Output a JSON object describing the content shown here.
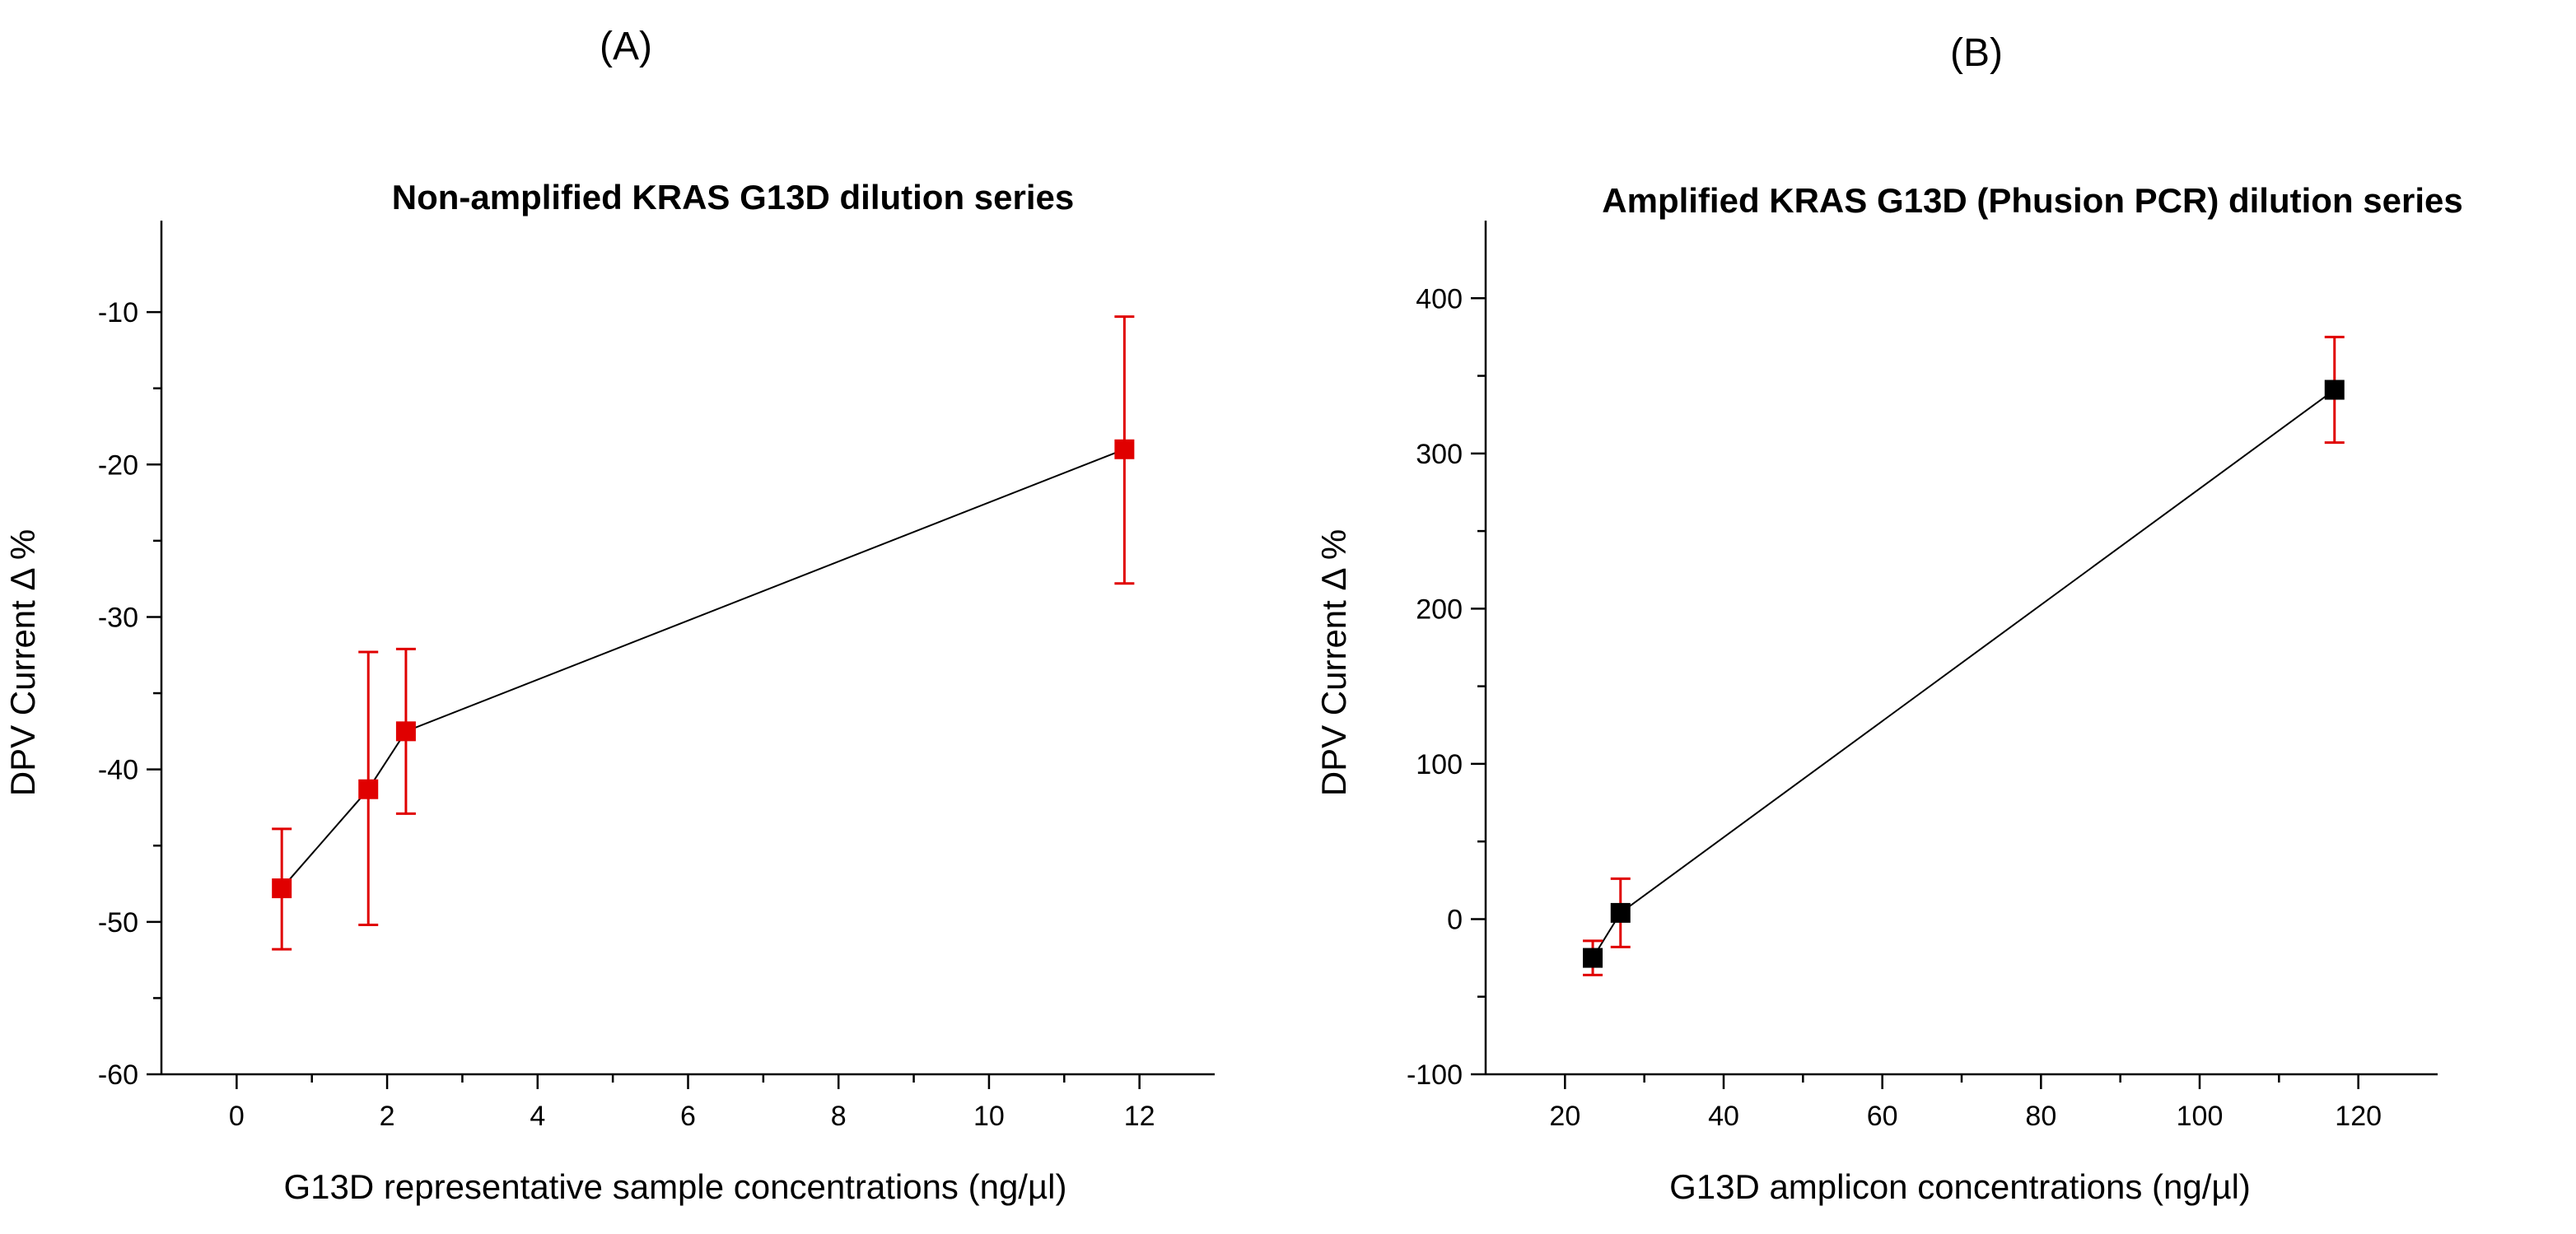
{
  "chart_data": [
    {
      "panel_label": "(A)",
      "type": "line",
      "title": "Non-amplified KRAS G13D dilution series",
      "xlabel": "G13D representative sample concentrations (ng/µl)",
      "ylabel": "DPV Current Δ %",
      "xlim": [
        -1,
        13
      ],
      "ylim": [
        -60,
        -4
      ],
      "xticks": [
        0,
        2,
        4,
        6,
        8,
        10,
        12
      ],
      "yticks": [
        -60,
        -50,
        -40,
        -30,
        -20,
        -10
      ],
      "marker_color": "#e00000",
      "errorbar_color": "#e00000",
      "line_color": "#000000",
      "points": [
        {
          "x": 0.6,
          "y": -47.8,
          "err_low": 4.0,
          "err_high": 3.9
        },
        {
          "x": 1.75,
          "y": -41.3,
          "err_low": 8.9,
          "err_high": 9.0
        },
        {
          "x": 2.25,
          "y": -37.5,
          "err_low": 5.4,
          "err_high": 5.4
        },
        {
          "x": 11.8,
          "y": -19.0,
          "err_low": 8.8,
          "err_high": 8.7
        }
      ]
    },
    {
      "panel_label": "(B)",
      "type": "line",
      "title": "Amplified KRAS G13D (Phusion PCR) dilution series",
      "xlabel": "G13D amplicon concentrations (ng/µl)",
      "ylabel": "DPV Current Δ %",
      "xlim": [
        10,
        130
      ],
      "ylim": [
        -100,
        450
      ],
      "xticks": [
        20,
        40,
        60,
        80,
        100,
        120
      ],
      "yticks": [
        -100,
        0,
        100,
        200,
        300,
        400
      ],
      "marker_color": "#000000",
      "errorbar_color": "#e00000",
      "line_color": "#000000",
      "points": [
        {
          "x": 23.5,
          "y": -25,
          "err_low": 11,
          "err_high": 11
        },
        {
          "x": 27,
          "y": 4,
          "err_low": 22,
          "err_high": 22
        },
        {
          "x": 117,
          "y": 341,
          "err_low": 34,
          "err_high": 34
        }
      ]
    }
  ]
}
